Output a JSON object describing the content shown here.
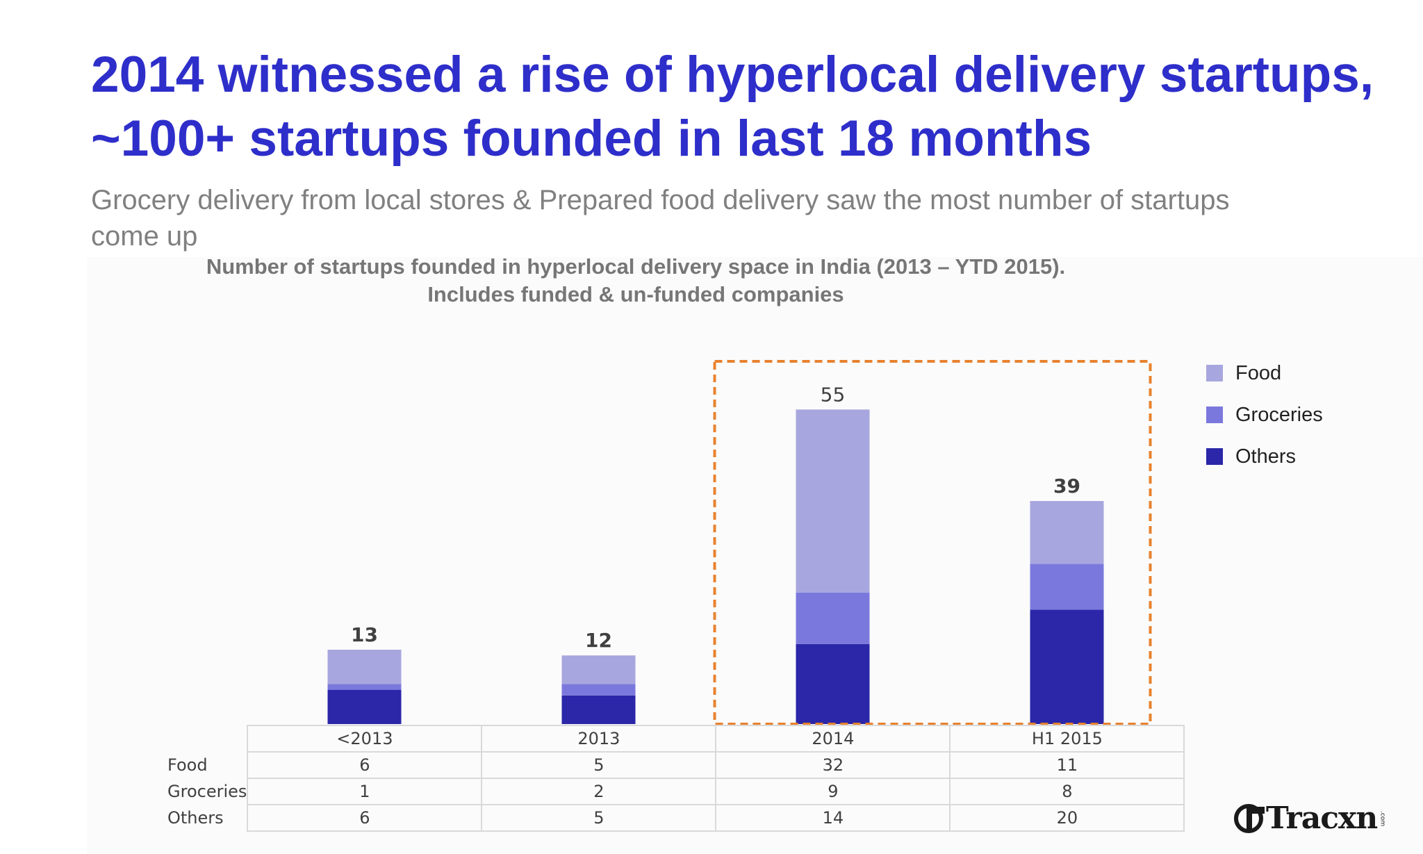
{
  "slide": {
    "title": "2014 witnessed a rise of hyperlocal delivery startups, ~100+ startups founded in last 18 months",
    "subtitle": "Grocery delivery from local stores & Prepared food delivery saw the most number of startups come up"
  },
  "chart_data": {
    "type": "bar",
    "stacked": true,
    "title": "Number of startups founded in hyperlocal delivery space in India (2013 – YTD 2015). Includes funded & un-funded companies",
    "categories": [
      "<2013",
      "2013",
      "2014",
      "H1 2015"
    ],
    "series": [
      {
        "name": "Others",
        "values": [
          6,
          5,
          14,
          20
        ],
        "color": "#2b27a8"
      },
      {
        "name": "Groceries",
        "values": [
          1,
          2,
          9,
          8
        ],
        "color": "#7b78dd"
      },
      {
        "name": "Food",
        "values": [
          6,
          5,
          32,
          11
        ],
        "color": "#a8a6de"
      }
    ],
    "totals": [
      13,
      12,
      55,
      39
    ],
    "legend_order": [
      "Food",
      "Groceries",
      "Others"
    ],
    "legend_position": "right",
    "highlight": {
      "categories": [
        "2014",
        "H1 2015"
      ],
      "color": "#e8822e"
    },
    "ylim": [
      0,
      60
    ],
    "grid": false
  },
  "branding": {
    "logo_text": "Tracxn",
    "logo_suffix": ".com"
  }
}
